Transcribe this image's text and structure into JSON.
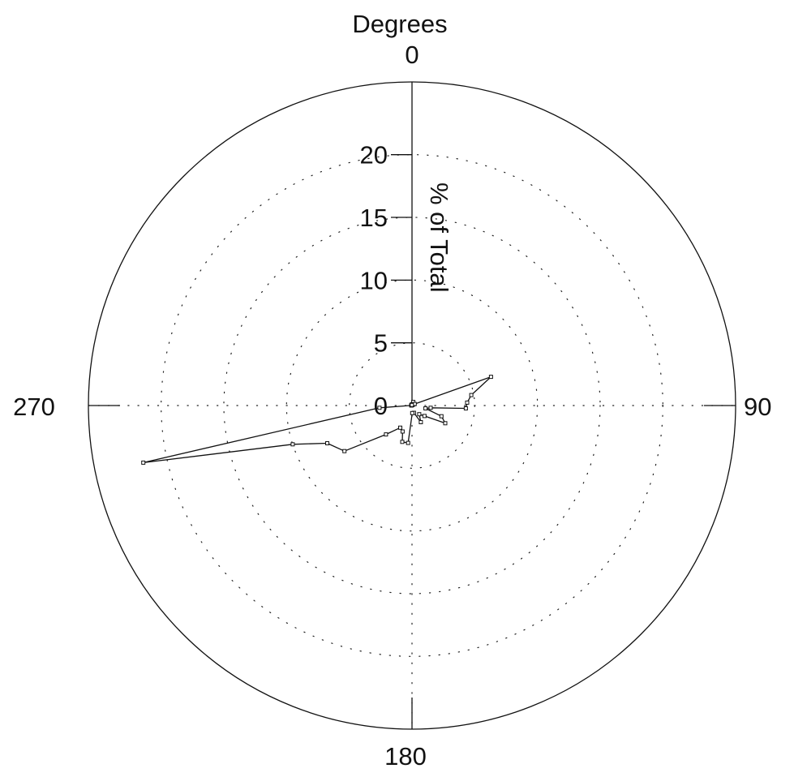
{
  "chart_data": {
    "type": "polar-line",
    "title": "Degrees",
    "radial_label": "% of Total",
    "angle_labels": [
      {
        "angle": 0,
        "text": "0"
      },
      {
        "angle": 90,
        "text": "90"
      },
      {
        "angle": 180,
        "text": "180"
      },
      {
        "angle": 270,
        "text": "270"
      }
    ],
    "radial_ticks": [
      {
        "value": 0,
        "text": "0"
      },
      {
        "value": 5,
        "text": "5"
      },
      {
        "value": 10,
        "text": "10"
      },
      {
        "value": 15,
        "text": "15"
      },
      {
        "value": 20,
        "text": "20"
      }
    ],
    "r_max": 25.8,
    "grid_circles": [
      5,
      10,
      15,
      20
    ],
    "grid": true,
    "points": [
      {
        "angle": 0,
        "r": 0.1
      },
      {
        "angle": 10,
        "r": 0.05
      },
      {
        "angle": 20,
        "r": 0.3
      },
      {
        "angle": 30,
        "r": 0.1
      },
      {
        "angle": 40,
        "r": 0.05
      },
      {
        "angle": 50,
        "r": 0.15
      },
      {
        "angle": 60,
        "r": 0.25
      },
      {
        "angle": 70,
        "r": 6.7
      },
      {
        "angle": 80,
        "r": 4.8
      },
      {
        "angle": 87,
        "r": 4.4
      },
      {
        "angle": 93,
        "r": 4.3
      },
      {
        "angle": 97,
        "r": 1.5
      },
      {
        "angle": 102,
        "r": 1.1
      },
      {
        "angle": 110,
        "r": 2.5
      },
      {
        "angle": 118,
        "r": 3.0
      },
      {
        "angle": 130,
        "r": 1.3
      },
      {
        "angle": 140,
        "r": 0.9
      },
      {
        "angle": 152,
        "r": 1.5
      },
      {
        "angle": 165,
        "r": 0.6
      },
      {
        "angle": 178,
        "r": 0.6
      },
      {
        "angle": 186,
        "r": 3.0
      },
      {
        "angle": 195,
        "r": 3.0
      },
      {
        "angle": 200,
        "r": 2.2
      },
      {
        "angle": 208,
        "r": 2.0
      },
      {
        "angle": 222,
        "r": 3.1
      },
      {
        "angle": 236,
        "r": 6.5
      },
      {
        "angle": 246,
        "r": 7.4
      },
      {
        "angle": 252,
        "r": 10.0
      },
      {
        "angle": 258,
        "r": 21.9
      },
      {
        "angle": 266,
        "r": 2.6
      },
      {
        "angle": 278,
        "r": 0.05
      },
      {
        "angle": 290,
        "r": 0.05
      },
      {
        "angle": 300,
        "r": 0.05
      },
      {
        "angle": 315,
        "r": 0.05
      },
      {
        "angle": 330,
        "r": 0.05
      },
      {
        "angle": 345,
        "r": 0.05
      }
    ]
  }
}
